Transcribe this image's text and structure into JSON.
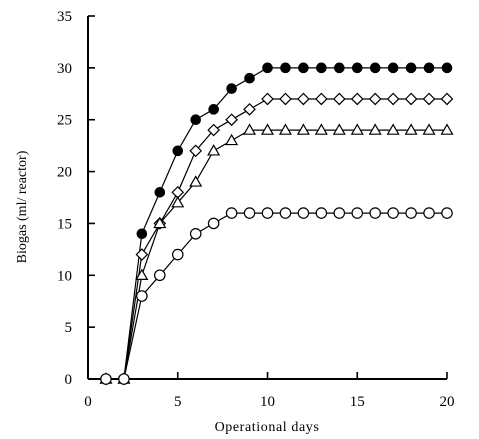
{
  "chart_data": {
    "type": "line",
    "title": "",
    "xlabel": "Operational days",
    "ylabel": "Biogas (ml/ reactor)",
    "xlim": [
      0,
      20
    ],
    "ylim": [
      0,
      35
    ],
    "xticks": [
      0,
      5,
      10,
      15,
      20
    ],
    "yticks": [
      0,
      5,
      10,
      15,
      20,
      25,
      30,
      35
    ],
    "grid": false,
    "legend": "none",
    "series": [
      {
        "marker": "filled-circle",
        "x": [
          1,
          2,
          3,
          4,
          5,
          6,
          7,
          8,
          9,
          10,
          11,
          12,
          13,
          14,
          15,
          16,
          17,
          18,
          19,
          20
        ],
        "values": [
          0,
          0,
          14,
          18,
          22,
          25,
          26,
          28,
          29,
          30,
          30,
          30,
          30,
          30,
          30,
          30,
          30,
          30,
          30,
          30
        ]
      },
      {
        "marker": "open-diamond",
        "x": [
          1,
          2,
          3,
          4,
          5,
          6,
          7,
          8,
          9,
          10,
          11,
          12,
          13,
          14,
          15,
          16,
          17,
          18,
          19,
          20
        ],
        "values": [
          0,
          0,
          12,
          15,
          18,
          22,
          24,
          25,
          26,
          27,
          27,
          27,
          27,
          27,
          27,
          27,
          27,
          27,
          27,
          27
        ]
      },
      {
        "marker": "open-triangle",
        "x": [
          1,
          2,
          3,
          4,
          5,
          6,
          7,
          8,
          9,
          10,
          11,
          12,
          13,
          14,
          15,
          16,
          17,
          18,
          19,
          20
        ],
        "values": [
          0,
          0,
          10,
          15,
          17,
          19,
          22,
          23,
          24,
          24,
          24,
          24,
          24,
          24,
          24,
          24,
          24,
          24,
          24,
          24
        ]
      },
      {
        "marker": "open-circle",
        "x": [
          1,
          2,
          3,
          4,
          5,
          6,
          7,
          8,
          9,
          10,
          11,
          12,
          13,
          14,
          15,
          16,
          17,
          18,
          19,
          20
        ],
        "values": [
          0,
          0,
          8,
          10,
          12,
          14,
          15,
          16,
          16,
          16,
          16,
          16,
          16,
          16,
          16,
          16,
          16,
          16,
          16,
          16
        ]
      }
    ]
  }
}
